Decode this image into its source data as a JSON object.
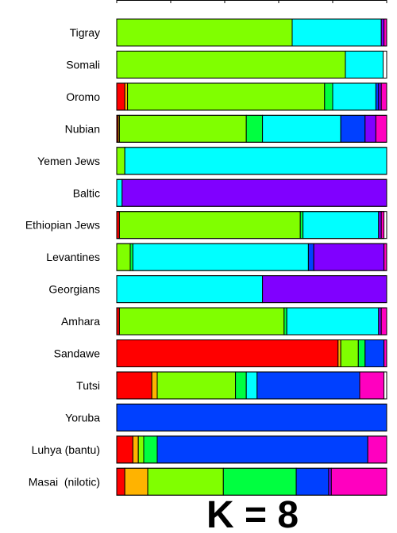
{
  "chart_data": {
    "type": "bar",
    "orientation": "horizontal-stacked",
    "title": "K = 8",
    "xlim": [
      0,
      1
    ],
    "component_colors": [
      "#FF0000",
      "#FFB300",
      "#80FF00",
      "#00FF40",
      "#00FFFF",
      "#0040FF",
      "#8000FF",
      "#FF00BF"
    ],
    "categories": [
      "Tigray",
      "Somali",
      "Oromo",
      "Nubian",
      "Yemen Jews",
      "Baltic",
      "Ethiopian Jews",
      "Levantines",
      "Georgians",
      "Amhara",
      "Sandawe",
      "Tutsi",
      "Yoruba",
      "Luhya (bantu)",
      "Masai  (nilotic)"
    ],
    "series": [
      {
        "values": [
          0.0,
          0.0,
          0.03,
          0.005,
          0.0,
          0.0,
          0.01,
          0.0,
          0.0,
          0.01,
          0.82,
          0.13,
          0.0,
          0.06,
          0.03
        ]
      },
      {
        "values": [
          0.0,
          0.0,
          0.01,
          0.005,
          0.0,
          0.0,
          0.0,
          0.0,
          0.0,
          0.0,
          0.01,
          0.02,
          0.0,
          0.02,
          0.085
        ]
      },
      {
        "values": [
          0.65,
          0.847,
          0.73,
          0.47,
          0.03,
          0.0,
          0.67,
          0.05,
          0.0,
          0.61,
          0.065,
          0.29,
          0.0,
          0.02,
          0.28
        ]
      },
      {
        "values": [
          0.0,
          0.0,
          0.03,
          0.06,
          0.0,
          0.0,
          0.01,
          0.01,
          0.0,
          0.01,
          0.025,
          0.04,
          0.0,
          0.05,
          0.27
        ]
      },
      {
        "values": [
          0.33,
          0.14,
          0.16,
          0.29,
          0.97,
          0.02,
          0.28,
          0.65,
          0.54,
          0.34,
          0.0,
          0.04,
          0.0,
          0.0,
          0.0
        ]
      },
      {
        "values": [
          0.0,
          0.0,
          0.01,
          0.09,
          0.0,
          0.0,
          0.0,
          0.02,
          0.0,
          0.0,
          0.07,
          0.38,
          1.0,
          0.78,
          0.12
        ]
      },
      {
        "values": [
          0.01,
          0.0,
          0.01,
          0.04,
          0.0,
          0.98,
          0.01,
          0.26,
          0.46,
          0.01,
          0.0,
          0.0,
          0.0,
          0.0,
          0.01
        ]
      },
      {
        "values": [
          0.01,
          0.0,
          0.02,
          0.04,
          0.0,
          0.0,
          0.01,
          0.01,
          0.0,
          0.02,
          0.01,
          0.09,
          0.0,
          0.07,
          0.205
        ]
      }
    ]
  }
}
